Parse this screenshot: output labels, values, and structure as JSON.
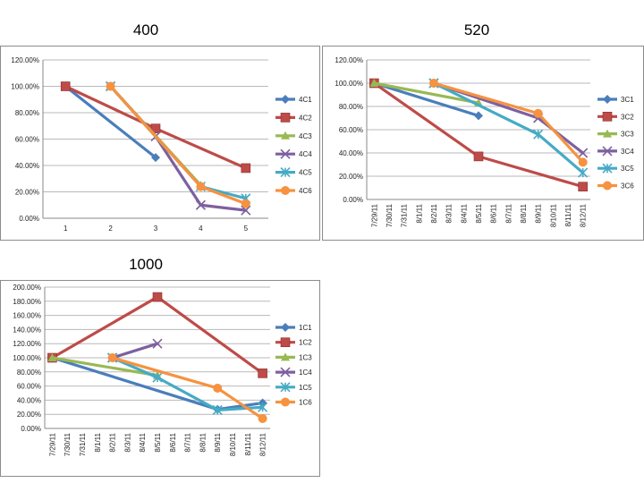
{
  "colors": {
    "s1": "#4a7ebb",
    "s2": "#be4b48",
    "s3": "#98b954",
    "s4": "#7d60a0",
    "s5": "#46aac5",
    "s6": "#f69240"
  },
  "marker_icons": [
    "diamond-marker-icon",
    "square-marker-icon",
    "triangle-marker-icon",
    "x-marker-icon",
    "star-marker-icon",
    "circle-marker-icon"
  ],
  "chart_data": [
    {
      "type": "line",
      "title": "400",
      "categories": [
        "1",
        "2",
        "3",
        "4",
        "5"
      ],
      "ylim": [
        0,
        1.2
      ],
      "yticks": [
        "0.00%",
        "20.00%",
        "40.00%",
        "60.00%",
        "80.00%",
        "100.00%",
        "120.00%"
      ],
      "grid": true,
      "legend": "right",
      "series": [
        {
          "name": "4C1",
          "values": [
            1.0,
            null,
            0.46,
            null,
            null
          ]
        },
        {
          "name": "4C2",
          "values": [
            1.0,
            null,
            0.68,
            null,
            0.38
          ]
        },
        {
          "name": "4C3",
          "values": [
            null,
            1.0,
            null,
            0.25,
            null
          ]
        },
        {
          "name": "4C4",
          "values": [
            null,
            1.0,
            0.62,
            0.1,
            0.06
          ]
        },
        {
          "name": "4C5",
          "values": [
            null,
            1.0,
            null,
            0.24,
            0.15
          ]
        },
        {
          "name": "4C6",
          "values": [
            null,
            1.0,
            null,
            0.24,
            0.11
          ]
        }
      ]
    },
    {
      "type": "line",
      "title": "520",
      "categories": [
        "7/29/11",
        "7/30/11",
        "7/31/11",
        "8/1/11",
        "8/2/11",
        "8/3/11",
        "8/4/11",
        "8/5/11",
        "8/6/11",
        "8/7/11",
        "8/8/11",
        "8/9/11",
        "8/10/11",
        "8/11/11",
        "8/12/11"
      ],
      "ylim": [
        0,
        1.2
      ],
      "yticks": [
        "0.00%",
        "20.00%",
        "40.00%",
        "60.00%",
        "80.00%",
        "100.00%",
        "120.00%"
      ],
      "grid": true,
      "legend": "right",
      "series": [
        {
          "name": "3C1",
          "points": [
            [
              "7/29/11",
              1.0
            ],
            [
              "8/5/11",
              0.72
            ]
          ]
        },
        {
          "name": "3C2",
          "points": [
            [
              "7/29/11",
              1.0
            ],
            [
              "8/5/11",
              0.37
            ],
            [
              "8/12/11",
              0.11
            ]
          ]
        },
        {
          "name": "3C3",
          "points": [
            [
              "7/29/11",
              1.0
            ],
            [
              "8/5/11",
              0.83
            ]
          ]
        },
        {
          "name": "3C4",
          "points": [
            [
              "8/2/11",
              1.0
            ],
            [
              "8/9/11",
              0.7
            ],
            [
              "8/12/11",
              0.4
            ]
          ]
        },
        {
          "name": "3C5",
          "points": [
            [
              "8/2/11",
              1.0
            ],
            [
              "8/9/11",
              0.56
            ],
            [
              "8/12/11",
              0.23
            ]
          ]
        },
        {
          "name": "3C6",
          "points": [
            [
              "8/2/11",
              1.0
            ],
            [
              "8/9/11",
              0.74
            ],
            [
              "8/12/11",
              0.32
            ]
          ]
        }
      ]
    },
    {
      "type": "line",
      "title": "1000",
      "categories": [
        "7/29/11",
        "7/30/11",
        "7/31/11",
        "8/1/11",
        "8/2/11",
        "8/3/11",
        "8/4/11",
        "8/5/11",
        "8/6/11",
        "8/7/11",
        "8/8/11",
        "8/9/11",
        "8/10/11",
        "8/11/11",
        "8/12/11"
      ],
      "ylim": [
        0,
        2.0
      ],
      "yticks": [
        "0.00%",
        "20.00%",
        "40.00%",
        "60.00%",
        "80.00%",
        "100.00%",
        "120.00%",
        "140.00%",
        "160.00%",
        "180.00%",
        "200.00%"
      ],
      "grid": true,
      "legend": "right",
      "series": [
        {
          "name": "1C1",
          "points": [
            [
              "7/29/11",
              1.0
            ],
            [
              "8/9/11",
              0.27
            ],
            [
              "8/12/11",
              0.36
            ]
          ]
        },
        {
          "name": "1C2",
          "points": [
            [
              "7/29/11",
              1.0
            ],
            [
              "8/5/11",
              1.86
            ],
            [
              "8/12/11",
              0.78
            ]
          ]
        },
        {
          "name": "1C3",
          "points": [
            [
              "7/29/11",
              1.0
            ],
            [
              "8/5/11",
              0.75
            ]
          ]
        },
        {
          "name": "1C4",
          "points": [
            [
              "8/2/11",
              1.0
            ],
            [
              "8/5/11",
              1.2
            ]
          ]
        },
        {
          "name": "1C5",
          "points": [
            [
              "8/2/11",
              1.0
            ],
            [
              "8/5/11",
              0.72
            ],
            [
              "8/9/11",
              0.26
            ],
            [
              "8/12/11",
              0.3
            ]
          ]
        },
        {
          "name": "1C6",
          "points": [
            [
              "8/2/11",
              1.0
            ],
            [
              "8/9/11",
              0.57
            ],
            [
              "8/12/11",
              0.14
            ]
          ]
        }
      ]
    }
  ]
}
